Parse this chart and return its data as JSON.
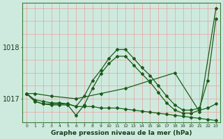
{
  "background_color": "#ceeade",
  "grid_color_v": "#e8a0a0",
  "grid_color_h": "#e8a0a0",
  "line_color": "#1a5c1a",
  "title": "Graphe pression niveau de la mer (hPa)",
  "ylabel_ticks": [
    1017,
    1018
  ],
  "xlim": [
    -0.5,
    23.5
  ],
  "ylim": [
    1016.55,
    1018.85
  ],
  "series": [
    {
      "x": [
        0,
        1,
        3,
        6,
        9,
        12,
        15,
        18,
        21,
        23
      ],
      "y": [
        1017.1,
        1017.1,
        1017.05,
        1017.0,
        1017.1,
        1017.2,
        1017.35,
        1017.5,
        1016.75,
        1018.75
      ]
    },
    {
      "x": [
        0,
        1,
        2,
        3,
        4,
        5,
        6,
        7,
        8,
        9,
        10,
        11,
        12,
        13,
        14,
        15,
        16,
        17,
        18,
        19,
        20,
        21,
        22,
        23
      ],
      "y": [
        1017.1,
        1016.95,
        1016.9,
        1016.9,
        1016.9,
        1016.9,
        1016.85,
        1017.05,
        1017.35,
        1017.55,
        1017.78,
        1017.95,
        1017.95,
        1017.78,
        1017.6,
        1017.45,
        1017.25,
        1017.05,
        1016.88,
        1016.78,
        1016.78,
        1016.82,
        1017.35,
        1018.55
      ]
    },
    {
      "x": [
        0,
        1,
        2,
        3,
        4,
        5,
        6,
        7,
        8,
        9,
        10,
        11,
        12,
        13,
        14,
        15,
        16,
        17,
        18,
        19,
        20,
        21,
        22,
        23
      ],
      "y": [
        1017.1,
        1016.95,
        1016.9,
        1016.88,
        1016.88,
        1016.88,
        1016.68,
        1016.88,
        1017.2,
        1017.48,
        1017.68,
        1017.82,
        1017.82,
        1017.65,
        1017.48,
        1017.32,
        1017.12,
        1016.92,
        1016.78,
        1016.72,
        1016.72,
        1016.78,
        1016.82,
        1016.9
      ]
    },
    {
      "x": [
        0,
        1,
        2,
        3,
        4,
        5,
        6,
        7,
        8,
        9,
        10,
        11,
        12,
        13,
        14,
        15,
        16,
        17,
        18,
        19,
        20,
        21,
        22,
        23
      ],
      "y": [
        1017.1,
        1016.98,
        1016.95,
        1016.92,
        1016.92,
        1016.9,
        1016.85,
        1016.85,
        1016.85,
        1016.82,
        1016.82,
        1016.82,
        1016.8,
        1016.78,
        1016.76,
        1016.74,
        1016.72,
        1016.7,
        1016.68,
        1016.66,
        1016.64,
        1016.62,
        1016.6,
        1016.58
      ]
    }
  ]
}
